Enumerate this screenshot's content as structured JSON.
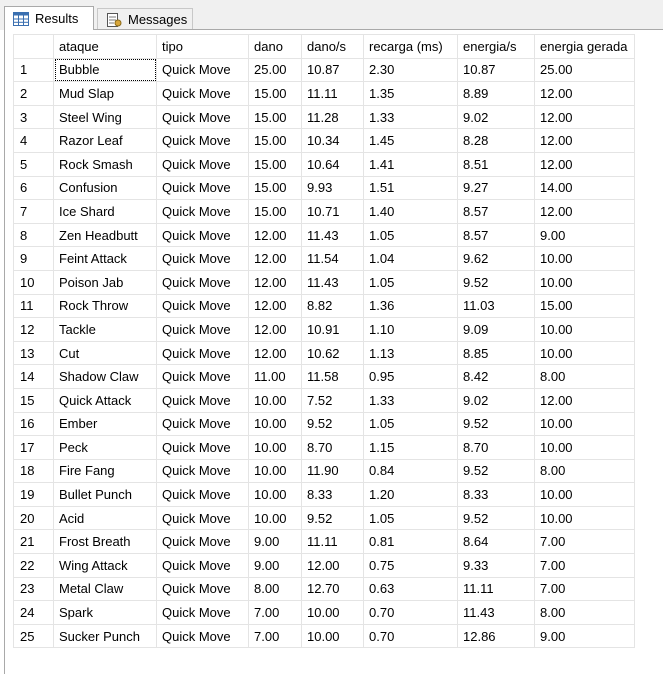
{
  "tabs": {
    "results_label": "Results",
    "messages_label": "Messages"
  },
  "columns": [
    "ataque",
    "tipo",
    "dano",
    "dano/s",
    "recarga (ms)",
    "energia/s",
    "energia gerada"
  ],
  "rows": [
    [
      "1",
      "Bubble",
      "Quick Move",
      "25.00",
      "10.87",
      "2.30",
      "10.87",
      "25.00"
    ],
    [
      "2",
      "Mud Slap",
      "Quick Move",
      "15.00",
      "11.11",
      "1.35",
      "8.89",
      "12.00"
    ],
    [
      "3",
      "Steel Wing",
      "Quick Move",
      "15.00",
      "11.28",
      "1.33",
      "9.02",
      "12.00"
    ],
    [
      "4",
      "Razor Leaf",
      "Quick Move",
      "15.00",
      "10.34",
      "1.45",
      "8.28",
      "12.00"
    ],
    [
      "5",
      "Rock Smash",
      "Quick Move",
      "15.00",
      "10.64",
      "1.41",
      "8.51",
      "12.00"
    ],
    [
      "6",
      "Confusion",
      "Quick Move",
      "15.00",
      "9.93",
      "1.51",
      "9.27",
      "14.00"
    ],
    [
      "7",
      "Ice Shard",
      "Quick Move",
      "15.00",
      "10.71",
      "1.40",
      "8.57",
      "12.00"
    ],
    [
      "8",
      "Zen Headbutt",
      "Quick Move",
      "12.00",
      "11.43",
      "1.05",
      "8.57",
      "9.00"
    ],
    [
      "9",
      "Feint Attack",
      "Quick Move",
      "12.00",
      "11.54",
      "1.04",
      "9.62",
      "10.00"
    ],
    [
      "10",
      "Poison Jab",
      "Quick Move",
      "12.00",
      "11.43",
      "1.05",
      "9.52",
      "10.00"
    ],
    [
      "11",
      "Rock Throw",
      "Quick Move",
      "12.00",
      "8.82",
      "1.36",
      "11.03",
      "15.00"
    ],
    [
      "12",
      "Tackle",
      "Quick Move",
      "12.00",
      "10.91",
      "1.10",
      "9.09",
      "10.00"
    ],
    [
      "13",
      "Cut",
      "Quick Move",
      "12.00",
      "10.62",
      "1.13",
      "8.85",
      "10.00"
    ],
    [
      "14",
      "Shadow Claw",
      "Quick Move",
      "11.00",
      "11.58",
      "0.95",
      "8.42",
      "8.00"
    ],
    [
      "15",
      "Quick Attack",
      "Quick Move",
      "10.00",
      "7.52",
      "1.33",
      "9.02",
      "12.00"
    ],
    [
      "16",
      "Ember",
      "Quick Move",
      "10.00",
      "9.52",
      "1.05",
      "9.52",
      "10.00"
    ],
    [
      "17",
      "Peck",
      "Quick Move",
      "10.00",
      "8.70",
      "1.15",
      "8.70",
      "10.00"
    ],
    [
      "18",
      "Fire Fang",
      "Quick Move",
      "10.00",
      "11.90",
      "0.84",
      "9.52",
      "8.00"
    ],
    [
      "19",
      "Bullet Punch",
      "Quick Move",
      "10.00",
      "8.33",
      "1.20",
      "8.33",
      "10.00"
    ],
    [
      "20",
      "Acid",
      "Quick Move",
      "10.00",
      "9.52",
      "1.05",
      "9.52",
      "10.00"
    ],
    [
      "21",
      "Frost Breath",
      "Quick Move",
      "9.00",
      "11.11",
      "0.81",
      "8.64",
      "7.00"
    ],
    [
      "22",
      "Wing Attack",
      "Quick Move",
      "9.00",
      "12.00",
      "0.75",
      "9.33",
      "7.00"
    ],
    [
      "23",
      "Metal Claw",
      "Quick Move",
      "8.00",
      "12.70",
      "0.63",
      "11.11",
      "7.00"
    ],
    [
      "24",
      "Spark",
      "Quick Move",
      "7.00",
      "10.00",
      "0.70",
      "11.43",
      "8.00"
    ],
    [
      "25",
      "Sucker Punch",
      "Quick Move",
      "7.00",
      "10.00",
      "0.70",
      "12.86",
      "9.00"
    ]
  ]
}
